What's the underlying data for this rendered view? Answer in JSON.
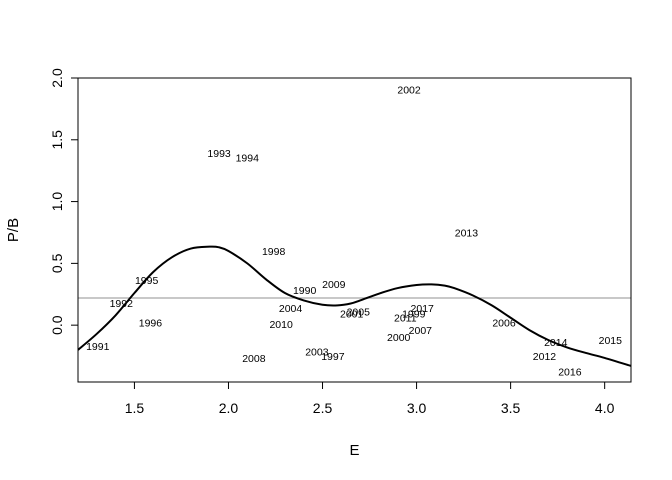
{
  "chart_data": {
    "type": "scatter",
    "title": "",
    "xlabel": "E",
    "ylabel": "P/B",
    "xlim": [
      1.2,
      4.14
    ],
    "ylim": [
      -0.46,
      2.0
    ],
    "xticks": [
      1.5,
      2.0,
      2.5,
      3.0,
      3.5,
      4.0
    ],
    "yticks": [
      0.0,
      0.5,
      1.0,
      1.5,
      2.0
    ],
    "xtick_labels": [
      "1.5",
      "2.0",
      "2.5",
      "3.0",
      "3.5",
      "4.0"
    ],
    "ytick_labels": [
      "0.0",
      "0.5",
      "1.0",
      "1.5",
      "2.0"
    ],
    "grid": false,
    "reference_line": {
      "y": 0.22,
      "color": "#a6a6a6"
    },
    "points": [
      {
        "label": "1991",
        "x": 1.305,
        "y": -0.17
      },
      {
        "label": "1992",
        "x": 1.43,
        "y": 0.18
      },
      {
        "label": "1995",
        "x": 1.565,
        "y": 0.365
      },
      {
        "label": "1996",
        "x": 1.585,
        "y": 0.02
      },
      {
        "label": "1993",
        "x": 1.95,
        "y": 1.395
      },
      {
        "label": "1994",
        "x": 2.1,
        "y": 1.355
      },
      {
        "label": "1998",
        "x": 2.24,
        "y": 0.6
      },
      {
        "label": "2008",
        "x": 2.135,
        "y": -0.265
      },
      {
        "label": "2010",
        "x": 2.28,
        "y": 0.01
      },
      {
        "label": "2004",
        "x": 2.33,
        "y": 0.14
      },
      {
        "label": "1990",
        "x": 2.405,
        "y": 0.285
      },
      {
        "label": "2009",
        "x": 2.56,
        "y": 0.335
      },
      {
        "label": "2003",
        "x": 2.47,
        "y": -0.215
      },
      {
        "label": "1997",
        "x": 2.555,
        "y": -0.25
      },
      {
        "label": "2001",
        "x": 2.655,
        "y": 0.095
      },
      {
        "label": "2005",
        "x": 2.69,
        "y": 0.11
      },
      {
        "label": "2002",
        "x": 2.96,
        "y": 1.905
      },
      {
        "label": "2000",
        "x": 2.905,
        "y": -0.095
      },
      {
        "label": "2011",
        "x": 2.94,
        "y": 0.06
      },
      {
        "label": "1999",
        "x": 2.985,
        "y": 0.095
      },
      {
        "label": "2017",
        "x": 3.03,
        "y": 0.14
      },
      {
        "label": "2007",
        "x": 3.02,
        "y": -0.04
      },
      {
        "label": "2013",
        "x": 3.265,
        "y": 0.75
      },
      {
        "label": "2006",
        "x": 3.465,
        "y": 0.02
      },
      {
        "label": "2014",
        "x": 3.74,
        "y": -0.135
      },
      {
        "label": "2012",
        "x": 3.68,
        "y": -0.25
      },
      {
        "label": "2016",
        "x": 3.815,
        "y": -0.375
      },
      {
        "label": "2015",
        "x": 4.03,
        "y": -0.12
      }
    ],
    "density_curve": {
      "x": [
        1.2,
        1.3,
        1.4,
        1.5,
        1.6,
        1.7,
        1.8,
        1.9,
        1.95,
        2.0,
        2.1,
        2.2,
        2.3,
        2.4,
        2.5,
        2.58,
        2.65,
        2.7,
        2.8,
        2.9,
        3.0,
        3.08,
        3.15,
        3.2,
        3.3,
        3.4,
        3.5,
        3.6,
        3.7,
        3.8,
        3.9,
        4.0,
        4.14
      ],
      "y": [
        -0.2,
        -0.07,
        0.08,
        0.26,
        0.43,
        0.55,
        0.62,
        0.635,
        0.63,
        0.6,
        0.5,
        0.37,
        0.26,
        0.2,
        0.165,
        0.16,
        0.175,
        0.2,
        0.255,
        0.3,
        0.325,
        0.33,
        0.32,
        0.3,
        0.24,
        0.16,
        0.06,
        -0.04,
        -0.12,
        -0.18,
        -0.225,
        -0.265,
        -0.33
      ]
    }
  }
}
